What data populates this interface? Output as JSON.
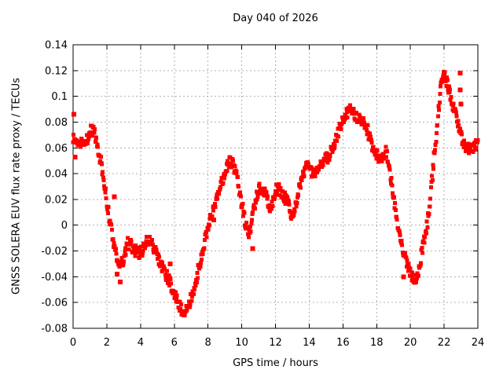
{
  "accent_color": "#ff0000",
  "chart_data": {
    "type": "scatter",
    "title": "Day 040 of 2026",
    "xlabel": "GPS time / hours",
    "ylabel": "GNSS SOLERA EUV flux rate proxy / TECUs",
    "xlim": [
      0,
      24
    ],
    "ylim": [
      -0.08,
      0.14
    ],
    "xticks": [
      0,
      2,
      4,
      6,
      8,
      10,
      12,
      14,
      16,
      18,
      20,
      22,
      24
    ],
    "yticks": [
      0.14,
      0.12,
      0.1,
      0.08,
      0.06,
      0.04,
      0.02,
      0,
      -0.02,
      -0.04,
      -0.06,
      -0.08
    ],
    "ytick_labels": [
      "0.14",
      "0.12",
      "0.1",
      "0.08",
      "0.06",
      "0.04",
      "0.02",
      "0",
      "-0.02",
      "-0.04",
      "-0.06",
      "-0.08"
    ],
    "grid": true,
    "grid_style": "dashed",
    "grid_color": "#b0b0b0",
    "legend": "none",
    "marker": "square",
    "marker_color": "#ff0000",
    "series": [
      {
        "name": "EUV flux rate proxy",
        "points": [
          [
            0.0,
            0.067
          ],
          [
            0.15,
            0.066
          ],
          [
            0.3,
            0.065
          ],
          [
            0.45,
            0.063
          ],
          [
            0.6,
            0.062
          ],
          [
            0.75,
            0.064
          ],
          [
            0.9,
            0.069
          ],
          [
            1.05,
            0.073
          ],
          [
            1.2,
            0.074
          ],
          [
            1.35,
            0.068
          ],
          [
            1.5,
            0.056
          ],
          [
            1.7,
            0.046
          ],
          [
            1.9,
            0.028
          ],
          [
            2.0,
            0.018
          ],
          [
            2.1,
            0.01
          ],
          [
            2.2,
            0.002
          ],
          [
            2.3,
            -0.006
          ],
          [
            2.4,
            -0.013
          ],
          [
            2.5,
            -0.019
          ],
          [
            2.65,
            -0.027
          ],
          [
            2.8,
            -0.032
          ],
          [
            2.95,
            -0.028
          ],
          [
            3.1,
            -0.02
          ],
          [
            3.25,
            -0.014
          ],
          [
            3.4,
            -0.015
          ],
          [
            3.55,
            -0.018
          ],
          [
            3.7,
            -0.02
          ],
          [
            3.85,
            -0.021
          ],
          [
            4.0,
            -0.021
          ],
          [
            4.15,
            -0.018
          ],
          [
            4.3,
            -0.014
          ],
          [
            4.45,
            -0.011
          ],
          [
            4.6,
            -0.013
          ],
          [
            4.75,
            -0.017
          ],
          [
            4.9,
            -0.021
          ],
          [
            5.05,
            -0.026
          ],
          [
            5.2,
            -0.03
          ],
          [
            5.35,
            -0.034
          ],
          [
            5.5,
            -0.038
          ],
          [
            5.65,
            -0.042
          ],
          [
            5.8,
            -0.046
          ],
          [
            5.95,
            -0.051
          ],
          [
            6.1,
            -0.056
          ],
          [
            6.25,
            -0.061
          ],
          [
            6.4,
            -0.065
          ],
          [
            6.55,
            -0.068
          ],
          [
            6.7,
            -0.066
          ],
          [
            6.85,
            -0.061
          ],
          [
            7.0,
            -0.056
          ],
          [
            7.15,
            -0.049
          ],
          [
            7.3,
            -0.042
          ],
          [
            7.45,
            -0.033
          ],
          [
            7.6,
            -0.025
          ],
          [
            7.75,
            -0.015
          ],
          [
            7.9,
            -0.007
          ],
          [
            8.05,
            0.001
          ],
          [
            8.2,
            0.008
          ],
          [
            8.35,
            0.015
          ],
          [
            8.5,
            0.021
          ],
          [
            8.65,
            0.027
          ],
          [
            8.8,
            0.033
          ],
          [
            8.95,
            0.039
          ],
          [
            9.1,
            0.045
          ],
          [
            9.25,
            0.049
          ],
          [
            9.4,
            0.049
          ],
          [
            9.55,
            0.045
          ],
          [
            9.7,
            0.038
          ],
          [
            9.85,
            0.028
          ],
          [
            10.0,
            0.016
          ],
          [
            10.15,
            0.006
          ],
          [
            10.3,
            -0.002
          ],
          [
            10.45,
            -0.007
          ],
          [
            10.6,
            0.002
          ],
          [
            10.75,
            0.015
          ],
          [
            10.9,
            0.024
          ],
          [
            11.05,
            0.029
          ],
          [
            11.2,
            0.029
          ],
          [
            11.35,
            0.026
          ],
          [
            11.5,
            0.021
          ],
          [
            11.65,
            0.014
          ],
          [
            11.8,
            0.016
          ],
          [
            11.95,
            0.025
          ],
          [
            12.1,
            0.029
          ],
          [
            12.25,
            0.027
          ],
          [
            12.4,
            0.023
          ],
          [
            12.55,
            0.021
          ],
          [
            12.7,
            0.019
          ],
          [
            12.85,
            0.012
          ],
          [
            13.0,
            0.007
          ],
          [
            13.15,
            0.011
          ],
          [
            13.3,
            0.022
          ],
          [
            13.45,
            0.031
          ],
          [
            13.6,
            0.038
          ],
          [
            13.75,
            0.043
          ],
          [
            13.9,
            0.046
          ],
          [
            14.05,
            0.045
          ],
          [
            14.2,
            0.04
          ],
          [
            14.35,
            0.038
          ],
          [
            14.5,
            0.042
          ],
          [
            14.65,
            0.046
          ],
          [
            14.8,
            0.049
          ],
          [
            14.95,
            0.051
          ],
          [
            15.1,
            0.053
          ],
          [
            15.25,
            0.056
          ],
          [
            15.4,
            0.06
          ],
          [
            15.55,
            0.065
          ],
          [
            15.7,
            0.071
          ],
          [
            15.85,
            0.077
          ],
          [
            16.0,
            0.082
          ],
          [
            16.15,
            0.086
          ],
          [
            16.3,
            0.088
          ],
          [
            16.45,
            0.089
          ],
          [
            16.6,
            0.087
          ],
          [
            16.75,
            0.084
          ],
          [
            16.9,
            0.083
          ],
          [
            17.05,
            0.083
          ],
          [
            17.2,
            0.081
          ],
          [
            17.35,
            0.078
          ],
          [
            17.5,
            0.072
          ],
          [
            17.65,
            0.066
          ],
          [
            17.8,
            0.06
          ],
          [
            17.95,
            0.056
          ],
          [
            18.1,
            0.053
          ],
          [
            18.25,
            0.051
          ],
          [
            18.4,
            0.055
          ],
          [
            18.55,
            0.057
          ],
          [
            18.7,
            0.051
          ],
          [
            18.85,
            0.036
          ],
          [
            19.0,
            0.022
          ],
          [
            19.15,
            0.008
          ],
          [
            19.3,
            -0.003
          ],
          [
            19.45,
            -0.012
          ],
          [
            19.6,
            -0.021
          ],
          [
            19.75,
            -0.028
          ],
          [
            19.9,
            -0.034
          ],
          [
            20.05,
            -0.039
          ],
          [
            20.2,
            -0.043
          ],
          [
            20.35,
            -0.042
          ],
          [
            20.5,
            -0.034
          ],
          [
            20.65,
            -0.023
          ],
          [
            20.8,
            -0.012
          ],
          [
            20.95,
            -0.003
          ],
          [
            21.1,
            0.01
          ],
          [
            21.25,
            0.03
          ],
          [
            21.4,
            0.052
          ],
          [
            21.55,
            0.073
          ],
          [
            21.7,
            0.093
          ],
          [
            21.85,
            0.11
          ],
          [
            21.95,
            0.119
          ],
          [
            22.05,
            0.117
          ],
          [
            22.2,
            0.109
          ],
          [
            22.35,
            0.102
          ],
          [
            22.5,
            0.094
          ],
          [
            22.65,
            0.087
          ],
          [
            22.8,
            0.08
          ],
          [
            22.95,
            0.073
          ],
          [
            23.1,
            0.066
          ],
          [
            23.25,
            0.062
          ],
          [
            23.4,
            0.06
          ],
          [
            23.55,
            0.059
          ],
          [
            23.7,
            0.061
          ],
          [
            23.85,
            0.063
          ],
          [
            24.0,
            0.066
          ]
        ]
      }
    ],
    "outlier_points": [
      [
        0.05,
        0.086
      ],
      [
        0.12,
        0.053
      ],
      [
        2.45,
        0.022
      ],
      [
        2.6,
        -0.038
      ],
      [
        2.8,
        -0.044
      ],
      [
        5.75,
        -0.03
      ],
      [
        8.35,
        0.004
      ],
      [
        10.65,
        -0.018
      ],
      [
        19.6,
        -0.04
      ],
      [
        22.95,
        0.118
      ],
      [
        22.95,
        0.105
      ],
      [
        23.0,
        0.094
      ]
    ]
  }
}
